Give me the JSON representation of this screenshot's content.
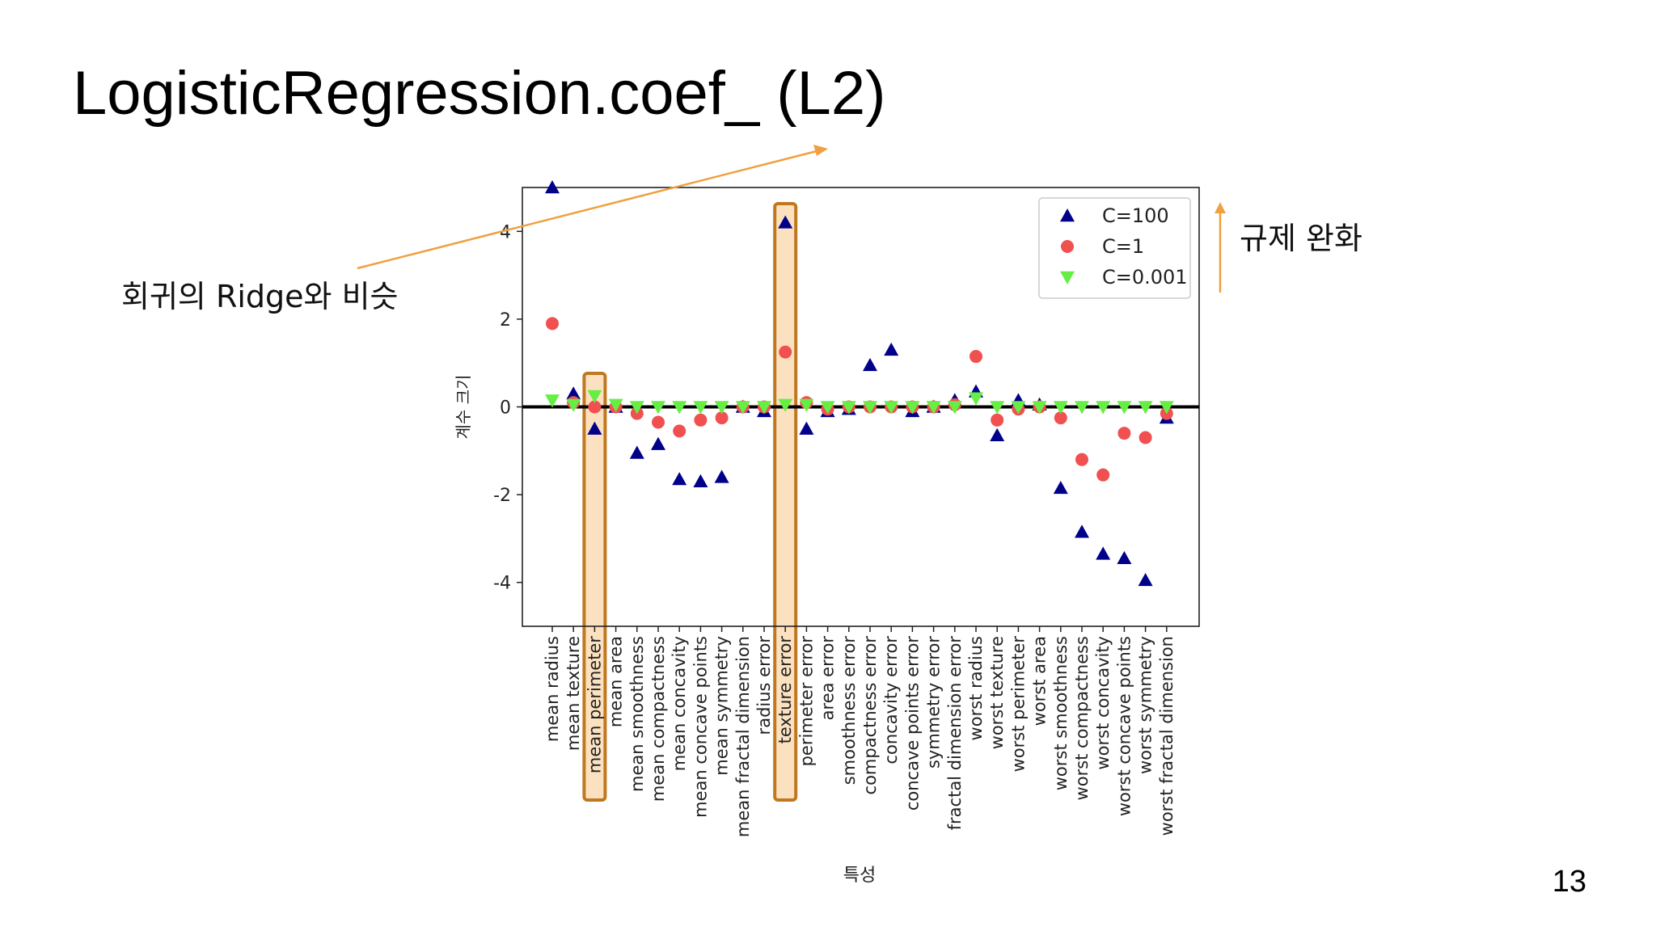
{
  "slide": {
    "title": "LogisticRegression.coef_ (L2)",
    "left_note": "회귀의 Ridge와 비슷",
    "right_note": "규제 완화",
    "page_number": "13"
  },
  "colors": {
    "c100": "#00008b",
    "c1": "#f05050",
    "c0001": "#66ee44",
    "highlight": "#c07820",
    "arrow": "#f0a040"
  },
  "chart_data": {
    "type": "scatter",
    "xlabel": "특성",
    "ylabel": "계수 크기",
    "ylim": [
      -5,
      5
    ],
    "yticks": [
      -4,
      -2,
      0,
      2,
      4
    ],
    "highlighted_categories": [
      "mean perimeter",
      "texture error"
    ],
    "legend_position": "top-right",
    "categories": [
      "mean radius",
      "mean texture",
      "mean perimeter",
      "mean area",
      "mean smoothness",
      "mean compactness",
      "mean concavity",
      "mean concave points",
      "mean symmetry",
      "mean fractal dimension",
      "radius error",
      "texture error",
      "perimeter error",
      "area error",
      "smoothness error",
      "compactness error",
      "concavity error",
      "concave points error",
      "symmetry error",
      "fractal dimension error",
      "worst radius",
      "worst texture",
      "worst perimeter",
      "worst area",
      "worst smoothness",
      "worst compactness",
      "worst concavity",
      "worst concave points",
      "worst symmetry",
      "worst fractal dimension"
    ],
    "series": [
      {
        "name": "C=100",
        "marker": "triangle-up",
        "values": [
          5.0,
          0.3,
          -0.5,
          0.0,
          -1.05,
          -0.85,
          -1.65,
          -1.7,
          -1.6,
          0.0,
          -0.1,
          4.2,
          -0.5,
          -0.1,
          -0.05,
          0.95,
          1.3,
          -0.1,
          0.0,
          0.15,
          0.35,
          -0.65,
          0.15,
          0.05,
          -1.85,
          -2.85,
          -3.35,
          -3.45,
          -3.95,
          -0.25
        ]
      },
      {
        "name": "C=1",
        "marker": "circle",
        "values": [
          1.9,
          0.1,
          0.0,
          0.0,
          -0.15,
          -0.35,
          -0.55,
          -0.3,
          -0.25,
          0.0,
          0.0,
          1.25,
          0.1,
          -0.05,
          0.0,
          0.0,
          0.0,
          0.0,
          0.0,
          0.05,
          1.15,
          -0.3,
          -0.05,
          0.0,
          -0.25,
          -1.2,
          -1.55,
          -0.6,
          -0.7,
          -0.15
        ]
      },
      {
        "name": "C=0.001",
        "marker": "triangle-down",
        "values": [
          0.15,
          0.05,
          0.25,
          0.05,
          0.0,
          0.0,
          0.0,
          0.0,
          0.0,
          0.0,
          0.0,
          0.05,
          0.05,
          0.0,
          0.0,
          0.0,
          0.0,
          0.0,
          0.0,
          0.0,
          0.2,
          0.0,
          0.0,
          0.0,
          0.0,
          0.0,
          0.0,
          0.0,
          0.0,
          0.0
        ]
      }
    ]
  }
}
